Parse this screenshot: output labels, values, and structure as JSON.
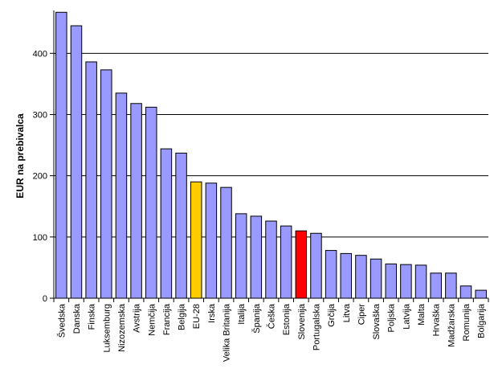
{
  "chart_data": {
    "type": "bar",
    "title": "",
    "xlabel": "",
    "ylabel": "EUR na prebivalca",
    "ylim": [
      0,
      470
    ],
    "yticks": [
      0,
      100,
      200,
      300,
      400
    ],
    "grid": true,
    "legend": "none",
    "colors": {
      "default": "#9999ff",
      "eu28": "#ffcc00",
      "slovenia": "#ff0000",
      "bar_edge": "#000000",
      "grid": "#000000"
    },
    "categories": [
      "Švedska",
      "Danska",
      "Finska",
      "Luksemburg",
      "Nizozemska",
      "Avstrija",
      "Nemčija",
      "Francija",
      "Belgija",
      "EU-28",
      "Irska",
      "Velika Britanija",
      "Italija",
      "Španija",
      "Češka",
      "Estonija",
      "Slovenija",
      "Portugalska",
      "Grčija",
      "Litva",
      "Ciper",
      "Slovaška",
      "Poljska",
      "Latvija",
      "Malta",
      "Hrvaška",
      "Madžarska",
      "Romunija",
      "Bolgarija"
    ],
    "values": [
      467,
      445,
      386,
      373,
      335,
      318,
      312,
      244,
      237,
      190,
      188,
      181,
      138,
      134,
      126,
      118,
      110,
      106,
      78,
      73,
      70,
      64,
      56,
      55,
      54,
      41,
      41,
      20,
      13
    ],
    "highlight": {
      "EU-28": "eu28",
      "Slovenija": "slovenia"
    }
  }
}
